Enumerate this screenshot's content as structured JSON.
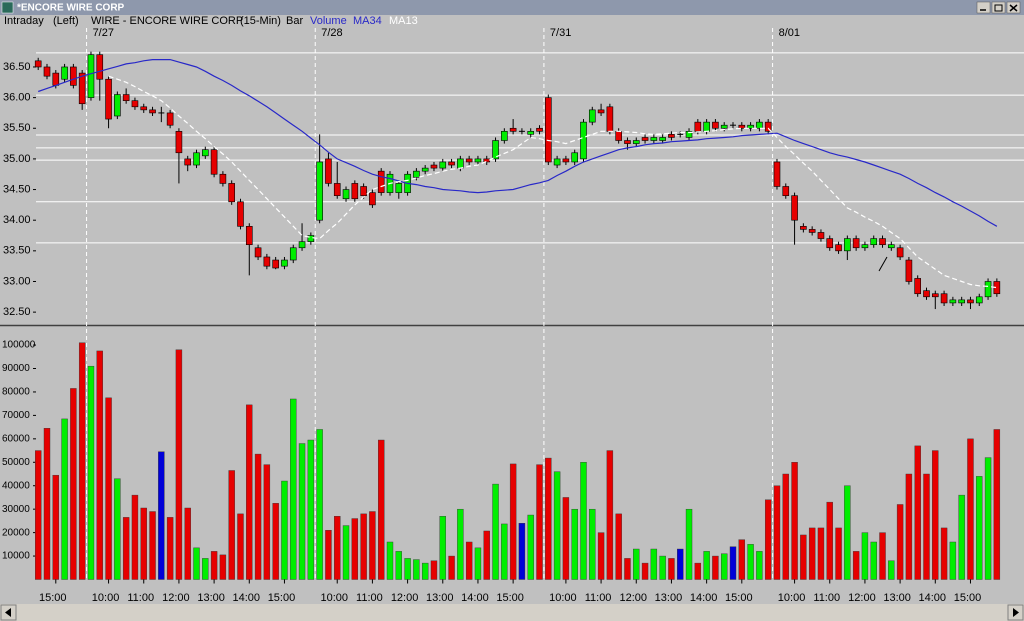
{
  "window_title": "*ENCORE WIRE CORP",
  "chart_data": [
    {
      "type": "candlestick",
      "header": {
        "view": "Intraday",
        "side": "(Left)",
        "title": "WIRE - ENCORE WIRE CORP",
        "interval": "(15-Min)",
        "style": "Bar"
      },
      "x2_categories": [
        null,
        null,
        null,
        null,
        null,
        null,
        "7/27",
        null,
        null,
        null,
        null,
        null,
        null,
        null,
        null,
        null,
        null,
        null,
        null,
        null,
        null,
        null,
        null,
        null,
        null,
        null,
        null,
        null,
        null,
        null,
        null,
        null,
        "7/28",
        null,
        null,
        null,
        null,
        null,
        null,
        null,
        null,
        null,
        null,
        null,
        null,
        null,
        null,
        null,
        null,
        null,
        null,
        null,
        null,
        null,
        null,
        null,
        null,
        null,
        "7/31",
        null,
        null,
        null,
        null,
        null,
        null,
        null,
        null,
        null,
        null,
        null,
        null,
        null,
        null,
        null,
        null,
        null,
        null,
        null,
        null,
        null,
        null,
        null,
        null,
        null,
        "8/01",
        null,
        null,
        null,
        null,
        null,
        null,
        null,
        null,
        null,
        null,
        null,
        null,
        null,
        null,
        null,
        null,
        null,
        null,
        null,
        null,
        null,
        null,
        null,
        null,
        null
      ],
      "open": [
        36.6,
        36.5,
        36.4,
        36.3,
        36.5,
        36.4,
        36.0,
        36.7,
        36.3,
        35.7,
        36.05,
        35.95,
        35.85,
        35.8,
        35.75,
        35.75,
        35.45,
        35.0,
        34.9,
        35.05,
        35.15,
        34.75,
        34.6,
        34.3,
        33.9,
        33.55,
        33.4,
        33.35,
        33.25,
        33.35,
        33.55,
        33.65,
        34.0,
        35.0,
        34.6,
        34.35,
        34.6,
        34.55,
        34.45,
        34.8,
        34.45,
        34.45,
        34.45,
        34.7,
        34.8,
        34.9,
        34.85,
        34.95,
        34.85,
        35.0,
        34.95,
        35.0,
        35.0,
        35.3,
        35.5,
        35.45,
        35.4,
        35.5,
        36.0,
        34.9,
        35.0,
        34.95,
        35.0,
        35.6,
        35.8,
        35.85,
        35.45,
        35.3,
        35.25,
        35.35,
        35.3,
        35.3,
        35.4,
        35.4,
        35.35,
        35.6,
        35.45,
        35.6,
        35.5,
        35.55,
        35.55,
        35.5,
        35.5,
        35.6,
        34.95,
        34.55,
        34.4,
        33.9,
        33.85,
        33.8,
        33.7,
        33.6,
        33.5,
        33.7,
        33.55,
        33.6,
        33.7,
        33.55,
        33.55,
        33.35,
        33.05,
        32.85,
        32.8,
        32.8,
        32.65,
        32.65,
        32.7,
        32.65,
        32.75,
        33.0
      ],
      "high": [
        36.65,
        36.55,
        36.45,
        36.55,
        36.55,
        36.45,
        36.75,
        36.75,
        36.35,
        36.1,
        36.15,
        36.0,
        35.9,
        35.85,
        35.85,
        35.8,
        35.5,
        35.05,
        35.15,
        35.2,
        35.2,
        34.8,
        34.65,
        34.35,
        33.95,
        33.6,
        33.45,
        33.4,
        33.4,
        33.6,
        33.95,
        33.8,
        35.4,
        35.1,
        34.95,
        34.55,
        34.65,
        34.6,
        34.5,
        34.85,
        34.8,
        34.65,
        34.8,
        34.85,
        34.9,
        34.95,
        35.0,
        35.0,
        35.05,
        35.05,
        35.05,
        35.05,
        35.35,
        35.5,
        35.65,
        35.5,
        35.5,
        35.55,
        36.05,
        35.05,
        35.05,
        35.15,
        35.65,
        35.85,
        35.9,
        35.9,
        35.5,
        35.35,
        35.35,
        35.4,
        35.4,
        35.4,
        35.45,
        35.45,
        35.5,
        35.65,
        35.65,
        35.65,
        35.6,
        35.6,
        35.6,
        35.6,
        35.65,
        35.65,
        35.0,
        34.6,
        34.45,
        33.95,
        33.9,
        33.85,
        33.75,
        33.65,
        33.75,
        33.75,
        33.65,
        33.75,
        33.75,
        33.65,
        33.6,
        33.4,
        33.1,
        32.9,
        32.85,
        32.85,
        32.75,
        32.75,
        32.75,
        32.8,
        33.05,
        33.05
      ],
      "low": [
        36.45,
        36.3,
        36.15,
        36.25,
        36.15,
        35.8,
        35.95,
        35.95,
        35.5,
        35.65,
        35.9,
        35.8,
        35.75,
        35.7,
        35.6,
        35.5,
        34.6,
        34.8,
        34.85,
        35.0,
        34.7,
        34.55,
        34.25,
        33.85,
        33.1,
        33.35,
        33.2,
        33.2,
        33.2,
        33.3,
        33.5,
        33.6,
        33.95,
        34.55,
        34.35,
        34.3,
        34.3,
        34.35,
        34.2,
        34.4,
        34.4,
        34.35,
        34.4,
        34.65,
        34.75,
        34.8,
        34.8,
        34.85,
        34.8,
        34.9,
        34.9,
        34.9,
        34.95,
        35.25,
        35.4,
        35.4,
        35.35,
        35.4,
        34.9,
        34.85,
        34.9,
        34.9,
        34.95,
        35.55,
        35.7,
        35.4,
        35.25,
        35.15,
        35.2,
        35.25,
        35.25,
        35.25,
        35.3,
        35.35,
        35.3,
        35.4,
        35.4,
        35.45,
        35.45,
        35.5,
        35.45,
        35.45,
        35.45,
        35.4,
        34.5,
        34.35,
        33.6,
        33.8,
        33.75,
        33.65,
        33.5,
        33.45,
        33.35,
        33.5,
        33.5,
        33.55,
        33.55,
        33.5,
        33.35,
        32.95,
        32.75,
        32.7,
        32.55,
        32.6,
        32.6,
        32.6,
        32.55,
        32.6,
        32.7,
        32.75
      ],
      "close": [
        36.5,
        36.35,
        36.2,
        36.5,
        36.2,
        35.9,
        36.7,
        36.3,
        35.65,
        36.05,
        35.95,
        35.85,
        35.8,
        35.75,
        35.75,
        35.55,
        35.1,
        34.9,
        35.1,
        35.15,
        34.75,
        34.6,
        34.3,
        33.9,
        33.6,
        33.4,
        33.25,
        33.22,
        33.35,
        33.55,
        33.65,
        33.75,
        34.95,
        34.6,
        34.4,
        34.5,
        34.35,
        34.4,
        34.25,
        34.45,
        34.75,
        34.6,
        34.75,
        34.8,
        34.85,
        34.85,
        34.95,
        34.9,
        35.0,
        34.95,
        35.0,
        34.95,
        35.3,
        35.45,
        35.45,
        35.45,
        35.45,
        35.45,
        34.95,
        35.0,
        34.95,
        35.1,
        35.6,
        35.8,
        35.75,
        35.45,
        35.3,
        35.25,
        35.3,
        35.3,
        35.35,
        35.35,
        35.35,
        35.4,
        35.45,
        35.45,
        35.6,
        35.5,
        35.55,
        35.55,
        35.5,
        35.55,
        35.6,
        35.45,
        34.55,
        34.4,
        34.0,
        33.85,
        33.8,
        33.7,
        33.55,
        33.5,
        33.7,
        33.55,
        33.6,
        33.7,
        33.6,
        33.6,
        33.4,
        33.0,
        32.8,
        32.75,
        32.75,
        32.65,
        32.7,
        32.7,
        32.65,
        32.75,
        33.0,
        32.8
      ],
      "up_color": "#00ee00",
      "down_color": "#e60000",
      "flat_color": "#0000d8",
      "series": [
        {
          "name": "MA34",
          "color": "#2828c8",
          "dashed": false,
          "values": [
            36.1,
            36.15,
            36.2,
            36.25,
            36.3,
            36.35,
            36.39,
            36.43,
            36.47,
            36.51,
            36.55,
            36.57,
            36.6,
            36.62,
            36.62,
            36.62,
            36.58,
            36.54,
            36.5,
            36.43,
            36.35,
            36.28,
            36.2,
            36.11,
            36.03,
            35.94,
            35.85,
            35.75,
            35.65,
            35.55,
            35.45,
            35.34,
            35.23,
            35.11,
            35.0,
            34.94,
            34.88,
            34.81,
            34.75,
            34.71,
            34.68,
            34.64,
            34.6,
            34.58,
            34.55,
            34.53,
            34.5,
            34.49,
            34.48,
            34.46,
            34.45,
            34.46,
            34.48,
            34.49,
            34.5,
            34.54,
            34.58,
            34.61,
            34.65,
            34.73,
            34.8,
            34.88,
            34.95,
            35.0,
            35.05,
            35.1,
            35.15,
            35.18,
            35.2,
            35.23,
            35.25,
            35.26,
            35.28,
            35.29,
            35.3,
            35.31,
            35.33,
            35.34,
            35.35,
            35.36,
            35.38,
            35.39,
            35.4,
            35.41,
            35.42,
            35.36,
            35.3,
            35.25,
            35.2,
            35.15,
            35.1,
            35.06,
            35.03,
            34.99,
            34.95,
            34.9,
            34.85,
            34.8,
            34.75,
            34.68,
            34.6,
            34.53,
            34.45,
            34.38,
            34.3,
            34.23,
            34.15,
            34.07,
            33.98,
            33.9
          ]
        },
        {
          "name": "MA13",
          "color": "#ffffff",
          "dashed": true,
          "values": [
            null,
            null,
            null,
            null,
            null,
            null,
            null,
            null,
            36.35,
            36.3,
            36.25,
            36.18,
            36.1,
            36.03,
            35.95,
            35.83,
            35.7,
            35.58,
            35.45,
            35.33,
            35.2,
            35.08,
            34.95,
            34.8,
            34.65,
            34.5,
            34.35,
            34.2,
            34.05,
            33.9,
            33.75,
            33.72,
            33.7,
            33.83,
            33.95,
            34.1,
            34.25,
            34.38,
            34.5,
            34.55,
            34.6,
            34.63,
            34.65,
            34.69,
            34.73,
            34.76,
            34.8,
            34.83,
            34.85,
            34.88,
            34.9,
            34.96,
            35.03,
            35.09,
            35.15,
            35.25,
            35.35,
            35.33,
            35.3,
            35.28,
            35.25,
            35.3,
            35.35,
            35.4,
            35.45,
            35.45,
            35.45,
            35.44,
            35.43,
            35.41,
            35.4,
            35.41,
            35.42,
            35.43,
            35.43,
            35.44,
            35.45,
            35.46,
            35.48,
            35.49,
            35.5,
            35.5,
            35.5,
            35.5,
            35.35,
            35.2,
            35.07,
            34.93,
            34.8,
            34.65,
            34.5,
            34.35,
            34.2,
            34.13,
            34.05,
            33.98,
            33.9,
            33.8,
            33.7,
            33.55,
            33.4,
            33.3,
            33.2,
            33.1,
            33.05,
            33.0,
            32.95,
            32.93,
            32.92,
            32.9
          ]
        }
      ],
      "levels": [
        36.73,
        36.04,
        35.39,
        35.18,
        34.98,
        34.3,
        33.63
      ],
      "ylim": [
        32.29,
        36.94
      ],
      "yticks": [
        {
          "value": 32.5,
          "label": "32.50"
        },
        {
          "value": 33,
          "label": "33.00"
        },
        {
          "value": 33.5,
          "label": "33.50"
        },
        {
          "value": 34,
          "label": "34.00"
        },
        {
          "value": 34.5,
          "label": "34.50"
        },
        {
          "value": 35,
          "label": "35.00"
        },
        {
          "value": 35.5,
          "label": "35.50"
        },
        {
          "value": 36,
          "label": "36.00"
        },
        {
          "value": 36.5,
          "label": "36.50"
        }
      ]
    },
    {
      "type": "bar",
      "name": "Volume",
      "label_color": "#2828c8",
      "categories": [
        null,
        null,
        "15:00",
        null,
        null,
        null,
        null,
        null,
        "10:00",
        null,
        null,
        null,
        "11:00",
        null,
        null,
        null,
        "12:00",
        null,
        null,
        null,
        "13:00",
        null,
        null,
        null,
        "14:00",
        null,
        null,
        null,
        "15:00",
        null,
        null,
        null,
        null,
        null,
        "10:00",
        null,
        null,
        null,
        "11:00",
        null,
        null,
        null,
        "12:00",
        null,
        null,
        null,
        "13:00",
        null,
        null,
        null,
        "14:00",
        null,
        null,
        null,
        "15:00",
        null,
        null,
        null,
        null,
        null,
        "10:00",
        null,
        null,
        null,
        "11:00",
        null,
        null,
        null,
        "12:00",
        null,
        null,
        null,
        "13:00",
        null,
        null,
        null,
        "14:00",
        null,
        null,
        null,
        "15:00",
        null,
        null,
        null,
        null,
        null,
        "10:00",
        null,
        null,
        null,
        "11:00",
        null,
        null,
        null,
        "12:00",
        null,
        null,
        null,
        "13:00",
        null,
        null,
        null,
        "14:00",
        null,
        null,
        null,
        "15:00",
        null,
        null,
        null
      ],
      "values": [
        55000,
        64500,
        44500,
        68500,
        81500,
        101000,
        91000,
        97500,
        77500,
        43000,
        26500,
        36000,
        30500,
        29000,
        54500,
        26500,
        98000,
        30500,
        13500,
        9000,
        12000,
        10500,
        46500,
        28000,
        74500,
        53500,
        49000,
        32500,
        42000,
        77000,
        58000,
        59500,
        64000,
        21000,
        27000,
        23000,
        26000,
        28000,
        29000,
        59500,
        16000,
        12000,
        9000,
        8500,
        7000,
        8000,
        27000,
        10000,
        30000,
        16000,
        13500,
        20700,
        40700,
        23700,
        49300,
        24000,
        27500,
        49000,
        51800,
        46000,
        35000,
        30000,
        50000,
        30000,
        20000,
        55000,
        28000,
        9000,
        13000,
        7000,
        13000,
        10000,
        9000,
        13000,
        30000,
        7000,
        12000,
        10000,
        11000,
        14000,
        17000,
        15000,
        12000,
        34000,
        40000,
        45000,
        50000,
        19000,
        22000,
        22000,
        33000,
        22000,
        40000,
        12000,
        20000,
        16000,
        20000,
        8000,
        32000,
        45000,
        57000,
        45000,
        55000,
        22000,
        16000,
        36000,
        60000,
        44000,
        52000,
        64000
      ],
      "ylim": [
        0,
        106000
      ],
      "yticks": [
        10000,
        20000,
        30000,
        40000,
        50000,
        60000,
        70000,
        80000,
        90000,
        100000
      ]
    }
  ]
}
